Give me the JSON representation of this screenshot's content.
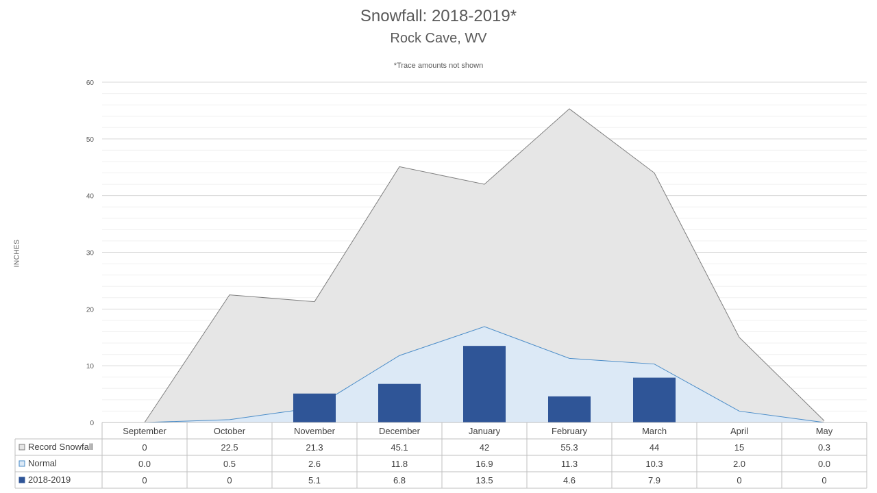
{
  "chart_data": {
    "type": "area",
    "title": "Snowfall: 2018-2019*",
    "subtitle": "Rock Cave, WV",
    "note": "*Trace amounts not shown",
    "ylabel": "INCHES",
    "ylim": [
      0,
      60
    ],
    "yticks": [
      0,
      10,
      20,
      30,
      40,
      50,
      60
    ],
    "grid": true,
    "legend": "data-table",
    "categories": [
      "September",
      "October",
      "November",
      "December",
      "January",
      "February",
      "March",
      "April",
      "May"
    ],
    "series": [
      {
        "name": "Record Snowfall",
        "kind": "area",
        "color": "#e6e6e6",
        "line_color": "#7f7f7f",
        "values": [
          0,
          22.5,
          21.3,
          45.1,
          42,
          55.3,
          44,
          15,
          0.3
        ],
        "display": [
          "0",
          "22.5",
          "21.3",
          "45.1",
          "42",
          "55.3",
          "44",
          "15",
          "0.3"
        ]
      },
      {
        "name": "Normal",
        "kind": "area",
        "color": "#dce9f6",
        "line_color": "#4a8cc8",
        "values": [
          0.0,
          0.5,
          2.6,
          11.8,
          16.9,
          11.3,
          10.3,
          2.0,
          0.0
        ],
        "display": [
          "0.0",
          "0.5",
          "2.6",
          "11.8",
          "16.9",
          "11.3",
          "10.3",
          "2.0",
          "0.0"
        ]
      },
      {
        "name": "2018-2019",
        "kind": "bar",
        "color": "#2f5597",
        "values": [
          0,
          0,
          5.1,
          6.8,
          13.5,
          4.6,
          7.9,
          0,
          0
        ],
        "display": [
          "0",
          "0",
          "5.1",
          "6.8",
          "13.5",
          "4.6",
          "7.9",
          "0",
          "0"
        ]
      }
    ]
  }
}
